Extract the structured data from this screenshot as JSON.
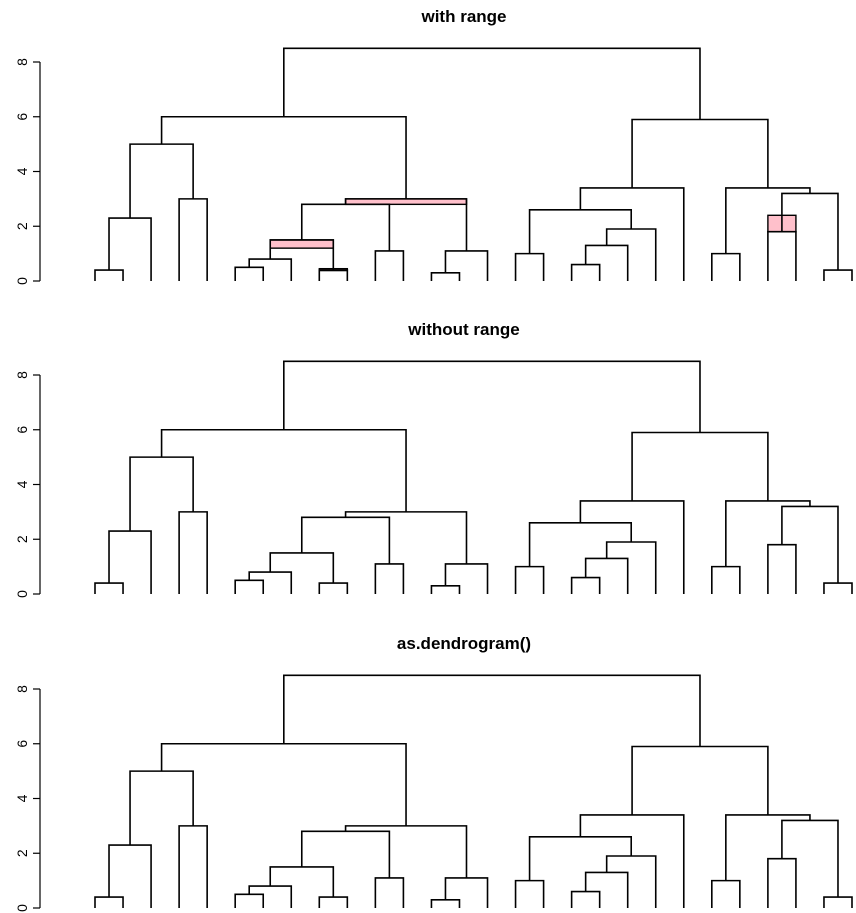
{
  "chart_data": [
    {
      "type": "dendrogram",
      "title": "with range",
      "ylim": [
        0,
        8.5
      ],
      "yticks": [
        "0",
        "2",
        "4",
        "6",
        "8"
      ],
      "yticks_values": [
        0,
        2,
        4,
        6,
        8
      ],
      "range_color": "#ffc0cb",
      "merges": [
        {
          "x": [
            0,
            1
          ],
          "h": 0.4
        },
        {
          "x": [
            2,
            3
          ],
          "h": 3.0
        },
        {
          "x": [
            5,
            6
          ],
          "h": 0.5
        },
        {
          "x": [
            7,
            8
          ],
          "h": 0.4
        },
        {
          "x": [
            11,
            12
          ],
          "h": 1.1
        },
        {
          "x": [
            14,
            15
          ],
          "h": 0.6
        },
        {
          "x": [
            17,
            18
          ],
          "h": 1.8
        },
        {
          "x": [
            0.5,
            2
          ],
          "h": 2.3
        },
        {
          "x": [
            1.25,
            2.5
          ],
          "h": 5.0
        },
        {
          "x": [
            3,
            4
          ],
          "h": 0.8
        },
        {
          "x": [
            9,
            10
          ],
          "h": 0.3
        },
        {
          "x": [
            12,
            13
          ],
          "h": 1.0
        },
        {
          "x": [
            4,
            5.5
          ],
          "h": 1.5,
          "range": [
            1.2,
            1.5
          ]
        },
        {
          "x": [
            5.5,
            7
          ],
          "h": 0.45,
          "range": [
            0.38,
            0.45
          ]
        },
        {
          "x": [
            4.5,
            6.5
          ],
          "h": 3.0,
          "range": [
            2.8,
            3.0
          ]
        },
        {
          "x": [
            10,
            11
          ],
          "h": 1.9
        },
        {
          "x": [
            10.5,
            12
          ],
          "h": 1.3
        },
        {
          "x": [
            8.5,
            11.25
          ],
          "h": 2.6
        },
        {
          "x": [
            9.875,
            12.5
          ],
          "h": 3.4
        },
        {
          "x": [
            16,
            17.5
          ],
          "h": 2.4,
          "range": [
            1.8,
            2.4
          ]
        },
        {
          "x": [
            15,
            16.75
          ],
          "h": 3.2
        },
        {
          "x": [
            14.5,
            15.875
          ],
          "h": 3.4
        },
        {
          "x": [
            11.19,
            15.19
          ],
          "h": 5.9
        },
        {
          "x": [
            5.5,
            13.19
          ],
          "h": 6.0
        },
        {
          "x": [
            1.875,
            9.345
          ],
          "h": 8.5
        }
      ]
    },
    {
      "type": "dendrogram",
      "title": "without range",
      "ylim": [
        0,
        8.5
      ],
      "yticks": [
        "0",
        "2",
        "4",
        "6",
        "8"
      ],
      "yticks_values": [
        0,
        2,
        4,
        6,
        8
      ]
    },
    {
      "type": "dendrogram",
      "title": "as.dendrogram()",
      "ylim": [
        0,
        8.5
      ],
      "yticks": [
        "0",
        "2",
        "4",
        "6",
        "8"
      ],
      "yticks_values": [
        0,
        2,
        4,
        6,
        8
      ]
    }
  ]
}
